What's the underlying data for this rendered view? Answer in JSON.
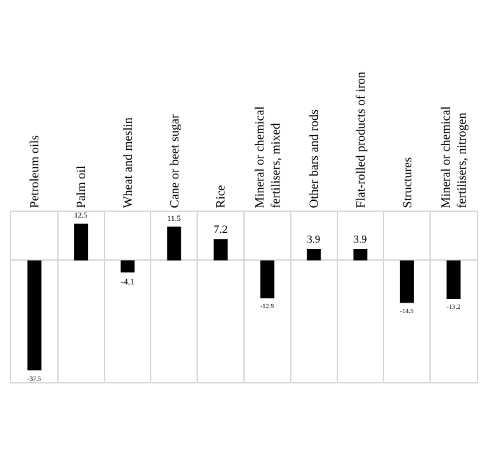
{
  "chart_data": {
    "type": "bar",
    "categories": [
      "Petroleum oils",
      "Palm oil",
      "Wheat and meslin",
      "Cane or beet sugar",
      "Rice",
      "Mineral or chemical\nfertilisers, mixed",
      "Other bars and rods",
      "Flat-rolled products of iron",
      "Structures",
      "Mineral or chemical\nfertilisers, nitrogen"
    ],
    "values": [
      -37.5,
      12.5,
      -4.1,
      11.5,
      7.2,
      -12.9,
      3.9,
      3.9,
      -14.5,
      -13.2
    ],
    "color": "#000000",
    "data_labels": true,
    "grid": "x",
    "tick_labels": "x",
    "legend": false
  }
}
